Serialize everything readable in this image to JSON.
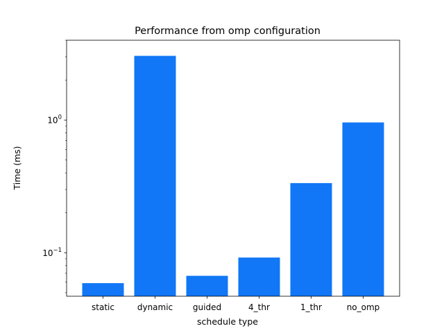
{
  "chart_data": {
    "type": "bar",
    "title": "Performance from omp configuration",
    "xlabel": "schedule type",
    "ylabel": "Time (ms)",
    "yscale": "log",
    "ylim": [
      0.047,
      4.0
    ],
    "categories": [
      "static",
      "dynamic",
      "guided",
      "4_thr",
      "1_thr",
      "no_omp"
    ],
    "values": [
      0.059,
      3.05,
      0.067,
      0.092,
      0.335,
      0.96
    ],
    "bar_color": "#1177f6",
    "y_tick_labels": [
      {
        "value": 0.1,
        "label": "10",
        "exp": "−1"
      },
      {
        "value": 1,
        "label": "10",
        "exp": "0"
      }
    ],
    "grid": false,
    "legend": "none"
  }
}
